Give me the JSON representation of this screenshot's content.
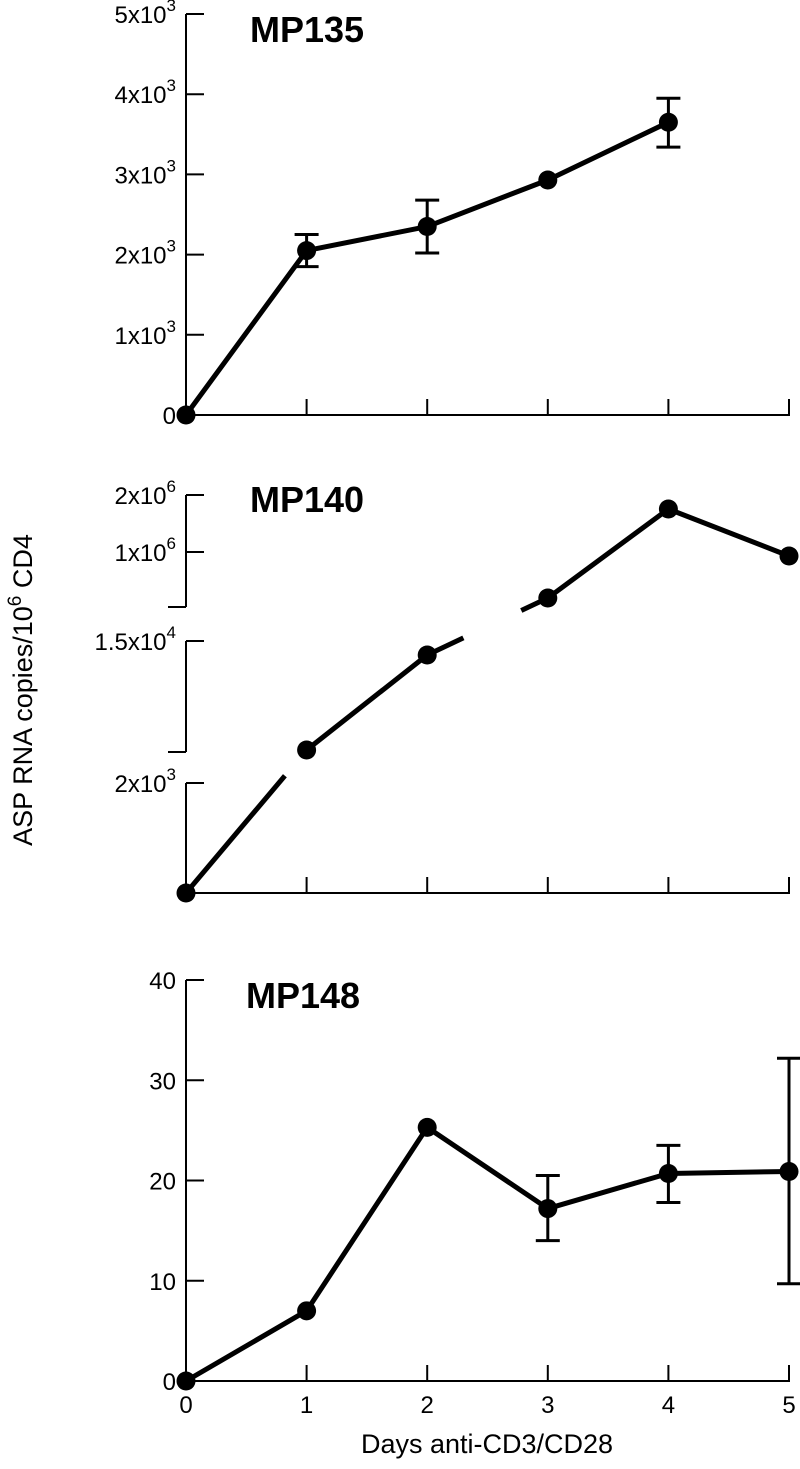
{
  "figure": {
    "ylabel_main": "ASP RNA copies/10",
    "ylabel_sup": "6",
    "ylabel_tail": " CD4",
    "xlabel": "Days anti-CD3/CD28"
  },
  "chart_data": [
    {
      "type": "line",
      "title": "MP135",
      "x": [
        0,
        1,
        2,
        3,
        4
      ],
      "y": [
        0,
        2050,
        2350,
        2930,
        3650
      ],
      "y_err_upper": [
        null,
        2250,
        2680,
        null,
        3950
      ],
      "y_err_lower": [
        null,
        1850,
        2020,
        null,
        3340
      ],
      "xlim": [
        0,
        5
      ],
      "ylim": [
        0,
        5000
      ],
      "yticks": [
        0,
        1000,
        2000,
        3000,
        4000,
        5000
      ],
      "ytick_labels": [
        {
          "base": "0",
          "exp": ""
        },
        {
          "base": "1x10",
          "exp": "3"
        },
        {
          "base": "2x10",
          "exp": "3"
        },
        {
          "base": "3x10",
          "exp": "3"
        },
        {
          "base": "4x10",
          "exp": "3"
        },
        {
          "base": "5x10",
          "exp": "3"
        }
      ],
      "x_tick_labels_shown": false
    },
    {
      "type": "line",
      "title": "MP140",
      "x": [
        0,
        1,
        2,
        3,
        4,
        5
      ],
      "y": [
        0,
        7500,
        14500,
        400000,
        1900000,
        950000
      ],
      "ylim": [
        0,
        2100000
      ],
      "broken_y_axis": true,
      "yticks": [
        2000,
        15000,
        1000000,
        2000000
      ],
      "ytick_labels": [
        {
          "base": "2x10",
          "exp": "3"
        },
        {
          "base": "1.5x10",
          "exp": "4"
        },
        {
          "base": "1x10",
          "exp": "6"
        },
        {
          "base": "2x10",
          "exp": "6"
        }
      ],
      "x_tick_labels_shown": false
    },
    {
      "type": "line",
      "title": "MP148",
      "x": [
        0,
        1,
        2,
        3,
        4,
        5
      ],
      "y": [
        0,
        7,
        25.3,
        17.2,
        20.7,
        20.9
      ],
      "y_err_upper": [
        null,
        null,
        null,
        20.5,
        23.5,
        32.2
      ],
      "y_err_lower": [
        null,
        null,
        null,
        14.0,
        17.8,
        9.7
      ],
      "xlim": [
        0,
        5
      ],
      "ylim": [
        0,
        40
      ],
      "yticks": [
        0,
        10,
        20,
        30,
        40
      ],
      "ytick_labels": [
        {
          "base": "0",
          "exp": ""
        },
        {
          "base": "10",
          "exp": ""
        },
        {
          "base": "20",
          "exp": ""
        },
        {
          "base": "30",
          "exp": ""
        },
        {
          "base": "40",
          "exp": ""
        }
      ],
      "xticks": [
        0,
        1,
        2,
        3,
        4,
        5
      ],
      "xtick_labels": [
        "0",
        "1",
        "2",
        "3",
        "4",
        "5"
      ],
      "x_tick_labels_shown": true
    }
  ]
}
